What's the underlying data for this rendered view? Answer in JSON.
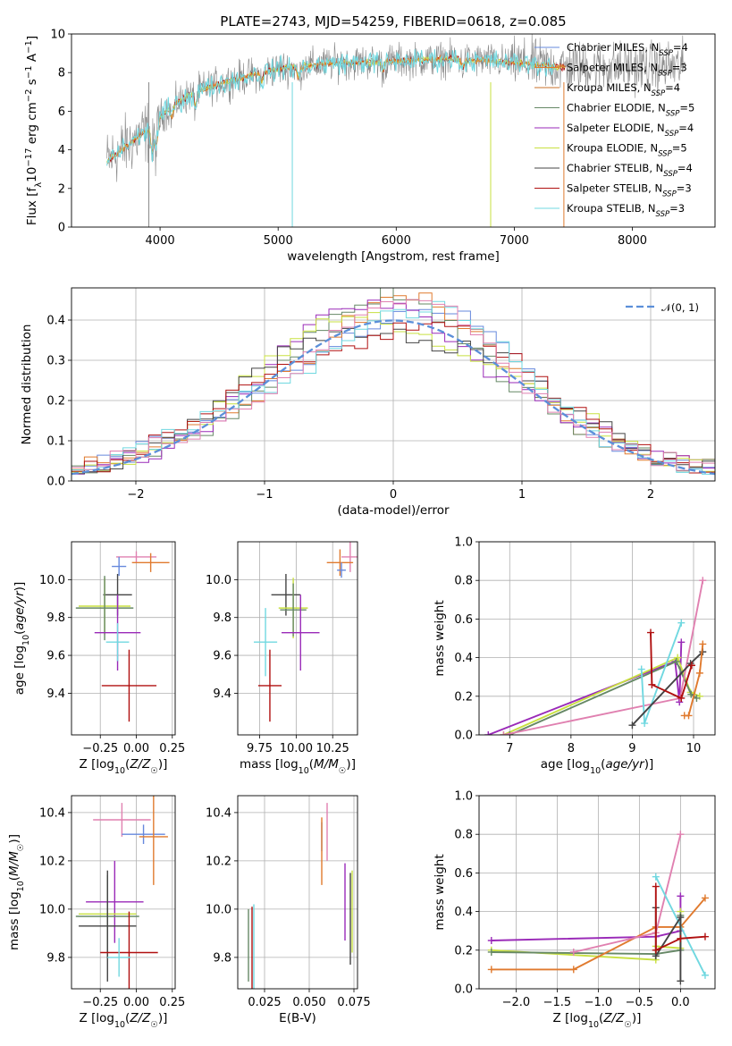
{
  "figure": {
    "title": "PLATE=2743, MJD=54259, FIBERID=0618, z=0.085"
  },
  "colors": {
    "Chabrier MILES": "#6688dd",
    "Salpeter MILES": "#e07a2e",
    "Kroupa MILES": "#c8702a",
    "Chabrier ELODIE": "#668866",
    "Salpeter ELODIE": "#9a2ab8",
    "Kroupa ELODIE": "#c8e040",
    "Chabrier STELIB": "#444444",
    "Salpeter STELIB": "#b01010",
    "Kroupa STELIB": "#70d8e0",
    "pink": "#e080b0",
    "gaussian": "#5b8fd9"
  },
  "chart_data": [
    {
      "id": "spectrum",
      "type": "line",
      "xlabel": "wavelength [Angstrom, rest frame]",
      "ylabel": "Flux [f_λ10^-17 erg cm^-2 s^-1 A^-1]",
      "xlim": [
        3250,
        8700
      ],
      "ylim": [
        0,
        10
      ],
      "xticks": [
        4000,
        5000,
        6000,
        7000,
        8000
      ],
      "yticks": [
        0,
        2,
        4,
        6,
        8,
        10
      ],
      "grid": false,
      "legend_position": "right",
      "legend": [
        {
          "name": "Chabrier MILES",
          "nssp": "4"
        },
        {
          "name": "Salpeter MILES",
          "nssp": "3"
        },
        {
          "name": "Kroupa MILES",
          "nssp": "4"
        },
        {
          "name": "Chabrier ELODIE",
          "nssp": "5"
        },
        {
          "name": "Salpeter ELODIE",
          "nssp": "4"
        },
        {
          "name": "Kroupa ELODIE",
          "nssp": "5"
        },
        {
          "name": "Chabrier STELIB",
          "nssp": "4"
        },
        {
          "name": "Salpeter STELIB",
          "nssp": "3"
        },
        {
          "name": "Kroupa STELIB",
          "nssp": "3"
        }
      ],
      "continuum": {
        "x": [
          3550,
          3650,
          3800,
          3900,
          4000,
          4100,
          4300,
          4600,
          5000,
          5500,
          6000,
          6500,
          7000,
          7400
        ],
        "y": [
          3.4,
          3.9,
          4.6,
          5.0,
          5.7,
          6.3,
          7.0,
          7.6,
          8.2,
          8.5,
          8.6,
          8.7,
          8.5,
          8.3
        ]
      }
    },
    {
      "id": "residuals",
      "type": "histogram",
      "xlabel": "(data-model)/error",
      "ylabel": "Normed distribution",
      "xlim": [
        -2.5,
        2.5
      ],
      "ylim": [
        0,
        0.48
      ],
      "xticks": [
        -2,
        -1,
        0,
        1,
        2
      ],
      "yticks": [
        0.0,
        0.1,
        0.2,
        0.3,
        0.4
      ],
      "grid": true,
      "legend_position": "top-right",
      "legend": "𝒩(0, 1)",
      "bins": [
        -2.5,
        2.5,
        50
      ],
      "reference_curve": "N(0,1)"
    },
    {
      "id": "age_vs_Z",
      "type": "errorbar",
      "xlabel": "Z [log10(Z/Z☉)]",
      "ylabel": "age  [log10(age/yr)]",
      "xlim": [
        -0.45,
        0.27
      ],
      "ylim": [
        9.18,
        10.2
      ],
      "xticks": [
        -0.25,
        0.0,
        0.25
      ],
      "yticks": [
        9.4,
        9.6,
        9.8,
        10.0
      ],
      "grid": true,
      "points": [
        {
          "c": "#e080b0",
          "x": 0.0,
          "xerr": 0.14,
          "y": 10.12,
          "yerr": 0.03
        },
        {
          "c": "#e07a2e",
          "x": 0.1,
          "xerr": 0.13,
          "y": 10.09,
          "yerr": 0.05
        },
        {
          "c": "#6688dd",
          "x": -0.12,
          "xerr": 0.05,
          "y": 10.07,
          "yerr": 0.05
        },
        {
          "c": "#444444",
          "x": -0.13,
          "xerr": 0.1,
          "y": 9.92,
          "yerr": 0.11
        },
        {
          "c": "#c8e040",
          "x": -0.22,
          "xerr": 0.18,
          "y": 9.86,
          "yerr": 0.15
        },
        {
          "c": "#668866",
          "x": -0.22,
          "xerr": 0.2,
          "y": 9.85,
          "yerr": 0.17
        },
        {
          "c": "#9a2ab8",
          "x": -0.13,
          "xerr": 0.16,
          "y": 9.72,
          "yerr": 0.2
        },
        {
          "c": "#70d8e0",
          "x": -0.13,
          "xerr": 0.08,
          "y": 9.67,
          "yerr": 0.1
        },
        {
          "c": "#b01010",
          "x": -0.05,
          "xerr": 0.19,
          "y": 9.44,
          "yerr": 0.19
        }
      ]
    },
    {
      "id": "age_vs_mass",
      "type": "errorbar",
      "xlabel": "mass [log10(M/M☉)]",
      "ylabel": "",
      "xlim": [
        9.6,
        10.42
      ],
      "ylim": [
        9.18,
        10.2
      ],
      "xticks": [
        9.75,
        10.0,
        10.25
      ],
      "xticklabels": [
        "9.75",
        "10.00",
        "10.25"
      ],
      "yticks": [
        9.4,
        9.6,
        9.8,
        10.0
      ],
      "grid": true,
      "points": [
        {
          "c": "#e080b0",
          "x": 10.37,
          "xerr": 0.06,
          "y": 10.12,
          "yerr": 0.08
        },
        {
          "c": "#e07a2e",
          "x": 10.3,
          "xerr": 0.09,
          "y": 10.09,
          "yerr": 0.07
        },
        {
          "c": "#6688dd",
          "x": 10.31,
          "xerr": 0.03,
          "y": 10.05,
          "yerr": 0.04
        },
        {
          "c": "#444444",
          "x": 9.93,
          "xerr": 0.1,
          "y": 9.92,
          "yerr": 0.11
        },
        {
          "c": "#c8e040",
          "x": 9.98,
          "xerr": 0.1,
          "y": 9.85,
          "yerr": 0.16
        },
        {
          "c": "#668866",
          "x": 9.98,
          "xerr": 0.09,
          "y": 9.84,
          "yerr": 0.14
        },
        {
          "c": "#9a2ab8",
          "x": 10.03,
          "xerr": 0.13,
          "y": 9.72,
          "yerr": 0.2
        },
        {
          "c": "#70d8e0",
          "x": 9.79,
          "xerr": 0.08,
          "y": 9.67,
          "yerr": 0.18
        },
        {
          "c": "#b01010",
          "x": 9.82,
          "xerr": 0.08,
          "y": 9.44,
          "yerr": 0.19
        }
      ]
    },
    {
      "id": "weight_vs_age",
      "type": "line",
      "xlabel": "age  [log10(age/yr)]",
      "ylabel": "mass weight",
      "xlim": [
        6.5,
        10.35
      ],
      "ylim": [
        0,
        1
      ],
      "xticks": [
        7,
        8,
        9,
        10
      ],
      "yticks": [
        0.0,
        0.2,
        0.4,
        0.6,
        0.8,
        1.0
      ],
      "grid": true,
      "series": [
        {
          "c": "#9a2ab8",
          "x": [
            6.65,
            9.7,
            9.77,
            9.8
          ],
          "y": [
            0.0,
            0.38,
            0.17,
            0.48
          ]
        },
        {
          "c": "#c8e040",
          "x": [
            6.9,
            9.74,
            9.95,
            10.1
          ],
          "y": [
            0.0,
            0.4,
            0.22,
            0.2
          ]
        },
        {
          "c": "#668866",
          "x": [
            7.0,
            9.72,
            9.96,
            10.05
          ],
          "y": [
            0.0,
            0.38,
            0.21,
            0.19
          ]
        },
        {
          "c": "#e080b0",
          "x": [
            6.9,
            9.78,
            10.15
          ],
          "y": [
            0.0,
            0.19,
            0.8
          ]
        },
        {
          "c": "#70d8e0",
          "x": [
            9.15,
            9.2,
            9.8
          ],
          "y": [
            0.34,
            0.06,
            0.58
          ]
        },
        {
          "c": "#444444",
          "x": [
            9.0,
            9.95,
            10.15
          ],
          "y": [
            0.05,
            0.37,
            0.43
          ]
        },
        {
          "c": "#b01010",
          "x": [
            9.3,
            9.32,
            9.8,
            9.97
          ],
          "y": [
            0.53,
            0.26,
            0.19,
            0.36
          ]
        },
        {
          "c": "#e07a2e",
          "x": [
            9.85,
            9.92,
            10.1,
            10.15
          ],
          "y": [
            0.1,
            0.1,
            0.32,
            0.47
          ]
        }
      ]
    },
    {
      "id": "mass_vs_Z",
      "type": "errorbar",
      "xlabel": "Z [log10(Z/Z☉)]",
      "ylabel": "mass [log10(M/M☉)]",
      "xlim": [
        -0.45,
        0.27
      ],
      "ylim": [
        9.67,
        10.47
      ],
      "xticks": [
        -0.25,
        0.0,
        0.25
      ],
      "yticks": [
        9.8,
        10.0,
        10.2,
        10.4
      ],
      "grid": true,
      "points": [
        {
          "c": "#e080b0",
          "x": -0.1,
          "xerr": 0.2,
          "y": 10.37,
          "yerr": 0.07
        },
        {
          "c": "#6688dd",
          "x": 0.05,
          "xerr": 0.15,
          "y": 10.31,
          "yerr": 0.04
        },
        {
          "c": "#e07a2e",
          "x": 0.12,
          "xerr": 0.1,
          "y": 10.3,
          "yerr": 0.2
        },
        {
          "c": "#9a2ab8",
          "x": -0.15,
          "xerr": 0.2,
          "y": 10.03,
          "yerr": 0.17
        },
        {
          "c": "#c8e040",
          "x": -0.2,
          "xerr": 0.2,
          "y": 9.98,
          "yerr": 0.16
        },
        {
          "c": "#668866",
          "x": -0.2,
          "xerr": 0.22,
          "y": 9.97,
          "yerr": 0.17
        },
        {
          "c": "#444444",
          "x": -0.2,
          "xerr": 0.2,
          "y": 9.93,
          "yerr": 0.23
        },
        {
          "c": "#b01010",
          "x": -0.05,
          "xerr": 0.2,
          "y": 9.82,
          "yerr": 0.17
        },
        {
          "c": "#70d8e0",
          "x": -0.12,
          "xerr": 0.08,
          "y": 9.8,
          "yerr": 0.08
        }
      ]
    },
    {
      "id": "mass_vs_EBV",
      "type": "errorbar",
      "xlabel": "E(B-V)",
      "ylabel": "",
      "xlim": [
        0.01,
        0.077
      ],
      "ylim": [
        9.67,
        10.47
      ],
      "xticks": [
        0.025,
        0.05,
        0.075
      ],
      "xticklabels": [
        "0.025",
        "0.050",
        "0.075"
      ],
      "yticks": [
        9.8,
        10.0,
        10.2,
        10.4
      ],
      "grid": true,
      "points": [
        {
          "c": "#e080b0",
          "x": 0.06,
          "y": 10.32,
          "yerr": 0.12
        },
        {
          "c": "#6688dd",
          "x": 0.057,
          "y": 10.3,
          "yerr": 0.06
        },
        {
          "c": "#e07a2e",
          "x": 0.057,
          "y": 10.24,
          "yerr": 0.14
        },
        {
          "c": "#9a2ab8",
          "x": 0.07,
          "y": 10.03,
          "yerr": 0.16
        },
        {
          "c": "#c8e040",
          "x": 0.074,
          "y": 9.99,
          "yerr": 0.17
        },
        {
          "c": "#444444",
          "x": 0.073,
          "y": 9.96,
          "yerr": 0.19
        },
        {
          "c": "#668866",
          "x": 0.016,
          "y": 9.85,
          "yerr": 0.15
        },
        {
          "c": "#70d8e0",
          "x": 0.019,
          "y": 9.82,
          "yerr": 0.2
        },
        {
          "c": "#b01010",
          "x": 0.018,
          "y": 9.84,
          "yerr": 0.17
        }
      ]
    },
    {
      "id": "weight_vs_Z",
      "type": "line",
      "xlabel": "Z [log10(Z/Z☉)]",
      "ylabel": "mass weight",
      "xlim": [
        -2.45,
        0.42
      ],
      "ylim": [
        0,
        1
      ],
      "xticks": [
        -2.0,
        -1.5,
        -1.0,
        -0.5,
        0.0
      ],
      "yticks": [
        0.0,
        0.2,
        0.4,
        0.6,
        0.8,
        1.0
      ],
      "grid": true,
      "series": [
        {
          "c": "#9a2ab8",
          "x": [
            -2.3,
            -0.3,
            0.0,
            0.0
          ],
          "y": [
            0.25,
            0.27,
            0.3,
            0.48
          ]
        },
        {
          "c": "#c8e040",
          "x": [
            -2.3,
            -0.3,
            -0.3,
            0.0,
            0.0
          ],
          "y": [
            0.2,
            0.15,
            0.22,
            0.21,
            0.4
          ]
        },
        {
          "c": "#668866",
          "x": [
            -2.3,
            -0.3,
            0.0,
            0.0
          ],
          "y": [
            0.19,
            0.18,
            0.2,
            0.38
          ]
        },
        {
          "c": "#e07a2e",
          "x": [
            -2.3,
            -1.3,
            -0.3,
            0.0,
            0.3
          ],
          "y": [
            0.1,
            0.1,
            0.32,
            0.32,
            0.47
          ]
        },
        {
          "c": "#e080b0",
          "x": [
            -1.3,
            -0.3,
            0.0
          ],
          "y": [
            0.19,
            0.29,
            0.8
          ]
        },
        {
          "c": "#70d8e0",
          "x": [
            -0.3,
            0.3
          ],
          "y": [
            0.58,
            0.07
          ]
        },
        {
          "c": "#444444",
          "x": [
            -0.3,
            -0.3,
            0.0,
            0.0
          ],
          "y": [
            0.42,
            0.17,
            0.37,
            0.04
          ]
        },
        {
          "c": "#b01010",
          "x": [
            -0.3,
            -0.3,
            0.0,
            0.3
          ],
          "y": [
            0.53,
            0.2,
            0.26,
            0.27
          ]
        }
      ]
    }
  ]
}
